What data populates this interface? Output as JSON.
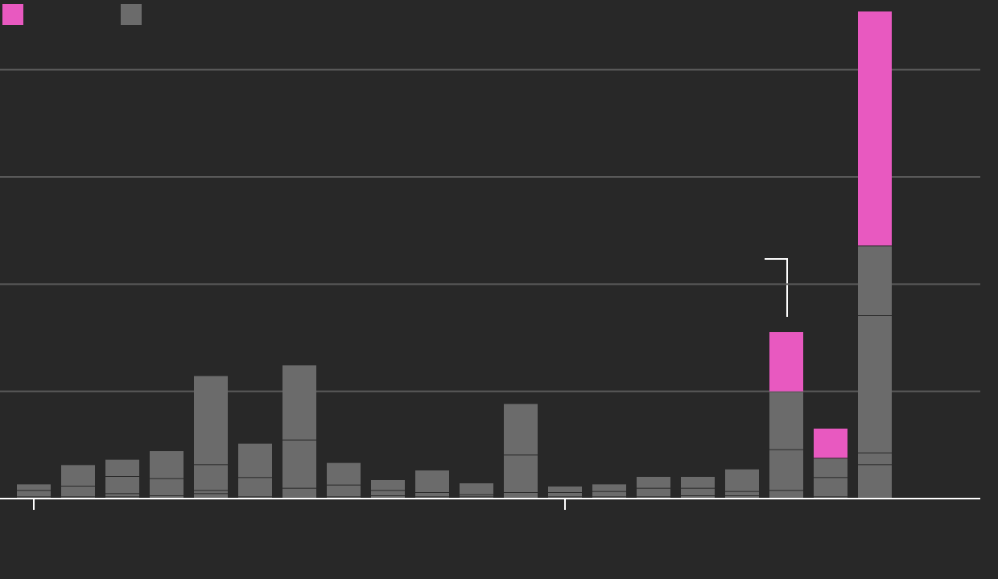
{
  "chart_data": {
    "type": "stacked-bar",
    "categories": [
      null,
      null,
      null,
      null,
      null,
      null,
      null,
      null,
      null,
      null,
      null,
      null,
      null,
      null,
      null,
      null,
      null,
      null,
      null,
      null
    ],
    "series": [
      {
        "color": "#6b6b6b",
        "values": [
          0.02,
          0.02,
          0.02,
          0.03,
          0.05,
          0.02,
          0.1,
          0.02,
          0.03,
          0.02,
          0.02,
          0.06,
          0.02,
          0.02,
          0.02,
          0.03,
          0.03,
          0.08,
          0.02,
          0.32
        ]
      },
      {
        "color": "#6b6b6b",
        "values": [
          0.06,
          0.1,
          0.03,
          0.16,
          0.03,
          0.18,
          0.45,
          0.11,
          0.05,
          0.04,
          0.02,
          0.35,
          0.04,
          0.05,
          0.08,
          0.07,
          0.04,
          0.38,
          0.18,
          0.11
        ]
      },
      {
        "color": "#6b6b6b",
        "values": [
          0.06,
          0.2,
          0.16,
          0.26,
          0.24,
          0.32,
          0.7,
          0.21,
          0.1,
          0.21,
          0.11,
          0.48,
          0.06,
          0.07,
          0.11,
          0.11,
          0.21,
          0.54,
          0.18,
          1.28
        ]
      },
      {
        "color": "#6b6b6b",
        "values": [
          null,
          null,
          0.16,
          null,
          0.83,
          null,
          null,
          null,
          null,
          null,
          null,
          null,
          null,
          null,
          null,
          null,
          null,
          null,
          null,
          0.65
        ]
      },
      {
        "color": "#e859c0",
        "values": [
          null,
          null,
          null,
          null,
          null,
          null,
          null,
          null,
          null,
          null,
          null,
          null,
          null,
          null,
          null,
          null,
          null,
          0.56,
          0.28,
          2.19
        ]
      }
    ],
    "legend": [
      {
        "color": "#e859c0"
      },
      {
        "color": "#6b6b6b"
      }
    ],
    "xtick_indices": [
      0,
      12
    ],
    "ylim": [
      0,
      4.65
    ],
    "yticks": [
      0,
      1,
      2,
      3,
      4
    ],
    "grid": true
  }
}
